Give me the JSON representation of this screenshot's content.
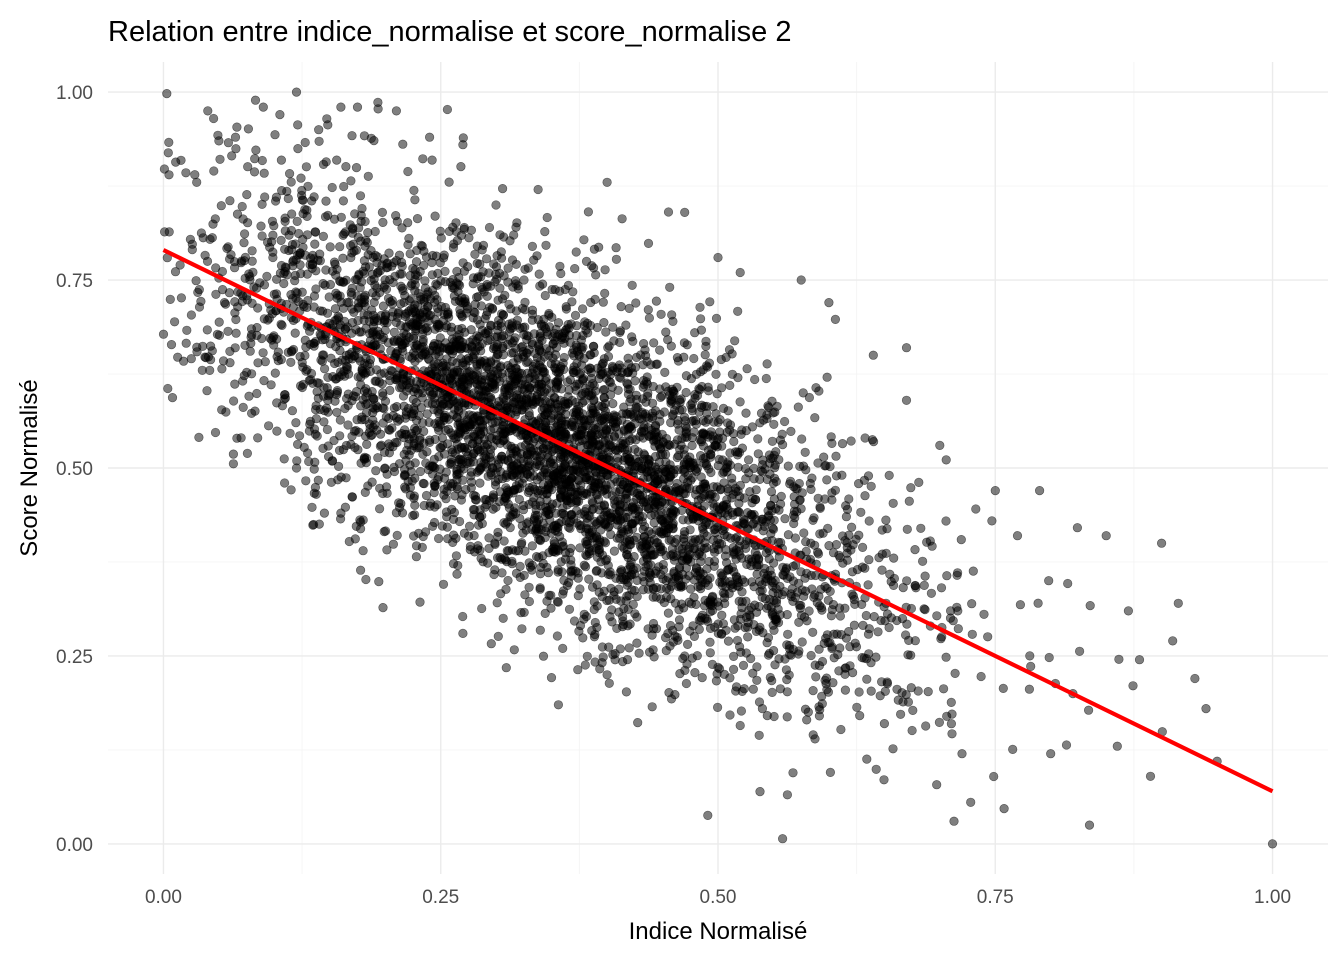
{
  "chart_data": {
    "type": "scatter",
    "title": "Relation entre indice_normalise et score_normalise 2",
    "xlabel": "Indice Normalisé",
    "ylabel": "Score Normalisé",
    "xlim": [
      -0.05,
      1.05
    ],
    "ylim": [
      -0.04,
      1.04
    ],
    "x_ticks": [
      0.0,
      0.25,
      0.5,
      0.75,
      1.0
    ],
    "x_tick_labels": [
      "0.00",
      "0.25",
      "0.50",
      "0.75",
      "1.00"
    ],
    "y_ticks": [
      0.0,
      0.25,
      0.5,
      0.75,
      1.0
    ],
    "y_tick_labels": [
      "0.00",
      "0.25",
      "0.50",
      "0.75",
      "1.00"
    ],
    "grid": true,
    "legend": "none",
    "point_color": "#000000",
    "point_opacity": 0.5,
    "point_count": 5000,
    "trend_line": {
      "color": "#ff0000",
      "x": [
        0.0,
        1.0
      ],
      "y": [
        0.79,
        0.07
      ]
    },
    "points": [
      [
        0.0,
        0.678
      ],
      [
        0.003,
        0.998
      ],
      [
        0.005,
        0.89
      ],
      [
        0.015,
        0.77
      ],
      [
        0.03,
        0.88
      ],
      [
        0.035,
        0.63
      ],
      [
        0.04,
        0.975
      ],
      [
        0.05,
        0.935
      ],
      [
        0.055,
        0.72
      ],
      [
        0.06,
        0.64
      ],
      [
        0.065,
        0.94
      ],
      [
        0.07,
        0.54
      ],
      [
        0.08,
        0.775
      ],
      [
        0.085,
        0.54
      ],
      [
        0.09,
        0.98
      ],
      [
        0.105,
        0.97
      ],
      [
        0.12,
        1.0
      ],
      [
        0.12,
        0.5
      ],
      [
        0.13,
        0.52
      ],
      [
        0.14,
        0.95
      ],
      [
        0.16,
        0.44
      ],
      [
        0.16,
        0.98
      ],
      [
        0.175,
        0.98
      ],
      [
        0.18,
        0.39
      ],
      [
        0.21,
        0.975
      ],
      [
        0.24,
        0.94
      ],
      [
        0.27,
        0.93
      ],
      [
        0.27,
        0.28
      ],
      [
        0.36,
        0.26
      ],
      [
        0.4,
        0.88
      ],
      [
        0.4,
        0.225
      ],
      [
        0.47,
        0.84
      ],
      [
        0.47,
        0.25
      ],
      [
        0.5,
        0.78
      ],
      [
        0.52,
        0.76
      ],
      [
        0.54,
        0.18
      ],
      [
        0.575,
        0.75
      ],
      [
        0.58,
        0.165
      ],
      [
        0.6,
        0.72
      ],
      [
        0.64,
        0.65
      ],
      [
        0.65,
        0.16
      ],
      [
        0.67,
        0.66
      ],
      [
        0.67,
        0.59
      ],
      [
        0.7,
        0.53
      ],
      [
        0.72,
        0.12
      ],
      [
        0.75,
        0.47
      ],
      [
        0.77,
        0.41
      ],
      [
        0.79,
        0.47
      ],
      [
        0.8,
        0.12
      ],
      [
        0.82,
        0.2
      ],
      [
        0.835,
        0.025
      ],
      [
        0.85,
        0.41
      ],
      [
        0.86,
        0.13
      ],
      [
        0.87,
        0.31
      ],
      [
        0.88,
        0.245
      ],
      [
        0.89,
        0.09
      ],
      [
        0.9,
        0.4
      ],
      [
        0.91,
        0.27
      ],
      [
        0.915,
        0.32
      ],
      [
        0.94,
        0.18
      ],
      [
        0.95,
        0.11
      ],
      [
        0.93,
        0.22
      ],
      [
        1.0,
        0.0
      ]
    ]
  }
}
